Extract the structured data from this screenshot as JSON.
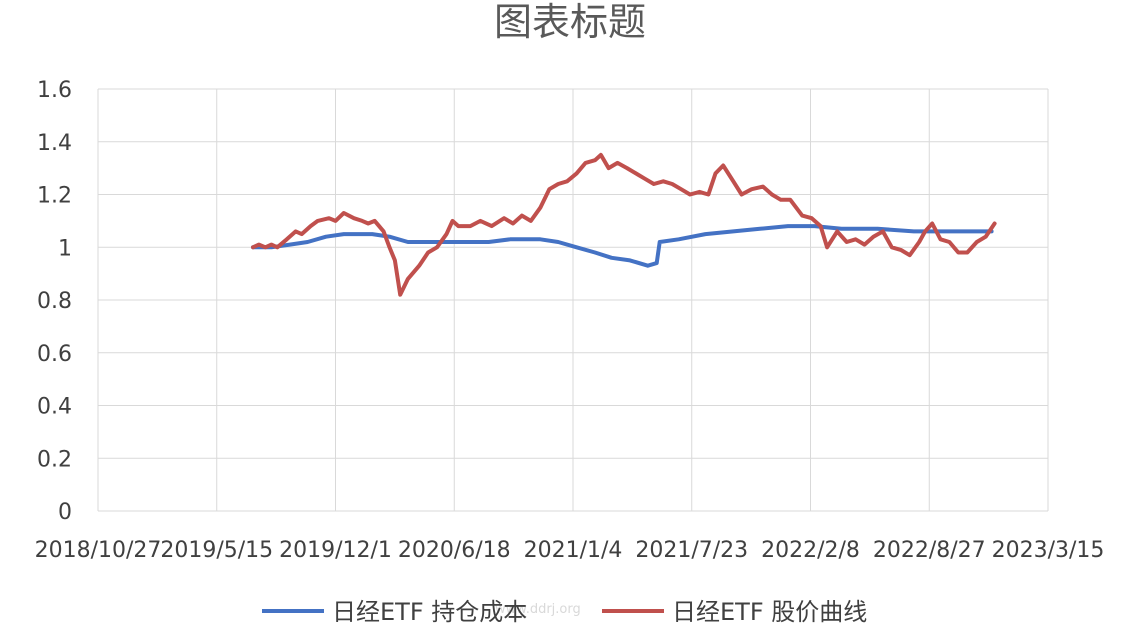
{
  "chart_data": {
    "type": "line",
    "title": "图表标题",
    "xlabel": "",
    "ylabel": "",
    "x_tick_labels": [
      "2018/10/27",
      "2019/5/15",
      "2019/12/1",
      "2020/6/18",
      "2021/1/4",
      "2021/7/23",
      "2022/2/8",
      "2022/8/27",
      "2023/3/15"
    ],
    "xlim": [
      "2018/10/27",
      "2023/3/15"
    ],
    "y_tick_labels": [
      "0",
      "0.2",
      "0.4",
      "0.6",
      "0.8",
      "1",
      "1.2",
      "1.4",
      "1.6"
    ],
    "ylim": [
      0,
      1.6
    ],
    "grid": true,
    "legend_position": "bottom",
    "series": [
      {
        "name": "日经ETF 持仓成本",
        "color": "#4472c4",
        "points": [
          [
            "2019/7/15",
            1.0
          ],
          [
            "2019/8/15",
            1.0
          ],
          [
            "2019/9/15",
            1.01
          ],
          [
            "2019/10/15",
            1.02
          ],
          [
            "2019/11/15",
            1.04
          ],
          [
            "2019/12/15",
            1.05
          ],
          [
            "2020/2/1",
            1.05
          ],
          [
            "2020/3/1",
            1.04
          ],
          [
            "2020/4/1",
            1.02
          ],
          [
            "2020/5/1",
            1.02
          ],
          [
            "2020/6/1",
            1.02
          ],
          [
            "2020/7/1",
            1.02
          ],
          [
            "2020/8/15",
            1.02
          ],
          [
            "2020/9/20",
            1.03
          ],
          [
            "2020/10/20",
            1.03
          ],
          [
            "2020/11/10",
            1.03
          ],
          [
            "2020/12/10",
            1.02
          ],
          [
            "2021/1/10",
            1.0
          ],
          [
            "2021/2/10",
            0.98
          ],
          [
            "2021/3/10",
            0.96
          ],
          [
            "2021/4/10",
            0.95
          ],
          [
            "2021/5/10",
            0.93
          ],
          [
            "2021/5/25",
            0.94
          ],
          [
            "2021/5/30",
            1.02
          ],
          [
            "2021/7/1",
            1.03
          ],
          [
            "2021/8/15",
            1.05
          ],
          [
            "2021/10/1",
            1.06
          ],
          [
            "2021/11/15",
            1.07
          ],
          [
            "2022/1/1",
            1.08
          ],
          [
            "2022/2/15",
            1.08
          ],
          [
            "2022/4/1",
            1.07
          ],
          [
            "2022/6/1",
            1.07
          ],
          [
            "2022/8/1",
            1.06
          ],
          [
            "2022/10/1",
            1.06
          ],
          [
            "2022/12/10",
            1.06
          ]
        ]
      },
      {
        "name": "日经ETF 股价曲线",
        "color": "#c0504d",
        "points": [
          [
            "2019/7/15",
            1.0
          ],
          [
            "2019/7/25",
            1.01
          ],
          [
            "2019/8/5",
            1.0
          ],
          [
            "2019/8/15",
            1.01
          ],
          [
            "2019/8/25",
            1.0
          ],
          [
            "2019/9/10",
            1.03
          ],
          [
            "2019/9/25",
            1.06
          ],
          [
            "2019/10/5",
            1.05
          ],
          [
            "2019/10/20",
            1.08
          ],
          [
            "2019/11/1",
            1.1
          ],
          [
            "2019/11/20",
            1.11
          ],
          [
            "2019/12/1",
            1.1
          ],
          [
            "2019/12/15",
            1.13
          ],
          [
            "2020/1/1",
            1.11
          ],
          [
            "2020/1/15",
            1.1
          ],
          [
            "2020/1/25",
            1.09
          ],
          [
            "2020/2/5",
            1.1
          ],
          [
            "2020/2/20",
            1.06
          ],
          [
            "2020/3/1",
            1.0
          ],
          [
            "2020/3/10",
            0.95
          ],
          [
            "2020/3/19",
            0.82
          ],
          [
            "2020/4/1",
            0.88
          ],
          [
            "2020/4/20",
            0.93
          ],
          [
            "2020/5/5",
            0.98
          ],
          [
            "2020/5/20",
            1.0
          ],
          [
            "2020/6/5",
            1.05
          ],
          [
            "2020/6/15",
            1.1
          ],
          [
            "2020/6/25",
            1.08
          ],
          [
            "2020/7/15",
            1.08
          ],
          [
            "2020/8/1",
            1.1
          ],
          [
            "2020/8/20",
            1.08
          ],
          [
            "2020/9/10",
            1.11
          ],
          [
            "2020/9/25",
            1.09
          ],
          [
            "2020/10/10",
            1.12
          ],
          [
            "2020/10/25",
            1.1
          ],
          [
            "2020/11/10",
            1.15
          ],
          [
            "2020/11/25",
            1.22
          ],
          [
            "2020/12/10",
            1.24
          ],
          [
            "2020/12/25",
            1.25
          ],
          [
            "2021/1/10",
            1.28
          ],
          [
            "2021/1/25",
            1.32
          ],
          [
            "2021/2/10",
            1.33
          ],
          [
            "2021/2/20",
            1.35
          ],
          [
            "2021/3/5",
            1.3
          ],
          [
            "2021/3/20",
            1.32
          ],
          [
            "2021/4/5",
            1.3
          ],
          [
            "2021/4/20",
            1.28
          ],
          [
            "2021/5/5",
            1.26
          ],
          [
            "2021/5/20",
            1.24
          ],
          [
            "2021/6/5",
            1.25
          ],
          [
            "2021/6/20",
            1.24
          ],
          [
            "2021/7/5",
            1.22
          ],
          [
            "2021/7/20",
            1.2
          ],
          [
            "2021/8/5",
            1.21
          ],
          [
            "2021/8/20",
            1.2
          ],
          [
            "2021/9/1",
            1.28
          ],
          [
            "2021/9/14",
            1.31
          ],
          [
            "2021/10/1",
            1.25
          ],
          [
            "2021/10/15",
            1.2
          ],
          [
            "2021/11/1",
            1.22
          ],
          [
            "2021/11/20",
            1.23
          ],
          [
            "2021/12/5",
            1.2
          ],
          [
            "2021/12/20",
            1.18
          ],
          [
            "2022/1/5",
            1.18
          ],
          [
            "2022/1/25",
            1.12
          ],
          [
            "2022/2/10",
            1.11
          ],
          [
            "2022/2/25",
            1.08
          ],
          [
            "2022/3/8",
            1.0
          ],
          [
            "2022/3/25",
            1.06
          ],
          [
            "2022/4/10",
            1.02
          ],
          [
            "2022/4/25",
            1.03
          ],
          [
            "2022/5/10",
            1.01
          ],
          [
            "2022/5/25",
            1.04
          ],
          [
            "2022/6/10",
            1.06
          ],
          [
            "2022/6/25",
            1.0
          ],
          [
            "2022/7/10",
            0.99
          ],
          [
            "2022/7/25",
            0.97
          ],
          [
            "2022/8/10",
            1.02
          ],
          [
            "2022/8/20",
            1.06
          ],
          [
            "2022/9/1",
            1.09
          ],
          [
            "2022/9/15",
            1.03
          ],
          [
            "2022/9/30",
            1.02
          ],
          [
            "2022/10/15",
            0.98
          ],
          [
            "2022/10/30",
            0.98
          ],
          [
            "2022/11/15",
            1.02
          ],
          [
            "2022/11/30",
            1.04
          ],
          [
            "2022/12/15",
            1.09
          ]
        ]
      }
    ],
    "watermark": "www.ddrj.org"
  }
}
